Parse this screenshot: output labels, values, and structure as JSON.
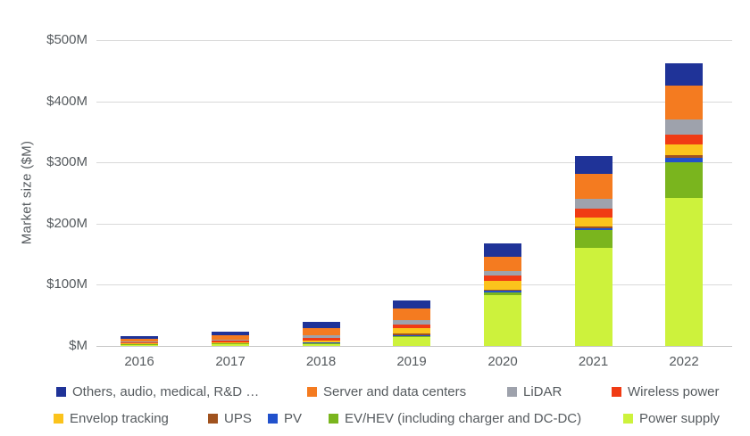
{
  "chart": {
    "y_axis_title": "Market size ($M)",
    "y_ticks": [
      "$500M",
      "$400M",
      "$300M",
      "$200M",
      "$100M",
      "$M"
    ],
    "gridline_color": "#d9d9d9",
    "baseline_color": "#c6c6c6",
    "text_color": "#555a5e"
  },
  "chart_data": {
    "type": "bar",
    "stacked": true,
    "title": "",
    "xlabel": "",
    "ylabel": "Market size ($M)",
    "ylim": [
      0,
      500
    ],
    "grid": true,
    "legend_position": "bottom",
    "stack_note": "series listed in legend order; stacked bottom-to-top in reverse order (first series on top)",
    "categories": [
      "2016",
      "2017",
      "2018",
      "2019",
      "2020",
      "2021",
      "2022"
    ],
    "series": [
      {
        "name": "Others, audio, medical, R&D …",
        "color": "#1f3398",
        "values": [
          4,
          6,
          10,
          13,
          22,
          28,
          36
        ]
      },
      {
        "name": "Server and data centers",
        "color": "#f47b20",
        "values": [
          4,
          7,
          12,
          18,
          23,
          41,
          55
        ]
      },
      {
        "name": "LiDAR",
        "color": "#9ea2ac",
        "values": [
          1.5,
          2,
          4,
          8,
          8,
          16,
          25
        ]
      },
      {
        "name": "Wireless power",
        "color": "#f03b14",
        "values": [
          1.5,
          2.5,
          4,
          6,
          8,
          15,
          16
        ]
      },
      {
        "name": "Envelop tracking",
        "color": "#fbc31c",
        "values": [
          1,
          1.5,
          3,
          9,
          15,
          15,
          18
        ]
      },
      {
        "name": "UPS",
        "color": "#a0521e",
        "values": [
          0.5,
          0.5,
          1,
          3,
          2,
          2,
          5
        ]
      },
      {
        "name": "PV",
        "color": "#2151cc",
        "values": [
          0.5,
          0.5,
          1.5,
          1,
          2,
          4,
          7
        ]
      },
      {
        "name": "EV/HEV (including charger and DC-DC)",
        "color": "#7ab51e",
        "values": [
          0.5,
          1,
          1,
          2,
          5,
          28,
          58
        ]
      },
      {
        "name": "Power supply",
        "color": "#cdf23c",
        "values": [
          2,
          3,
          3,
          14,
          83,
          161,
          242
        ]
      }
    ],
    "totals_approx": [
      15.5,
      24,
      39.5,
      74,
      168,
      310,
      462
    ]
  }
}
